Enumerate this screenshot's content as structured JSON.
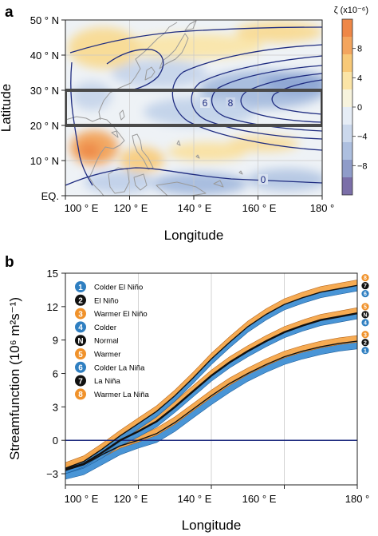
{
  "chart_data": [
    {
      "panel_label": "a",
      "type": "heatmap",
      "xlabel": "Longitude",
      "ylabel": "Latitude",
      "xlim": [
        100,
        180
      ],
      "ylim": [
        0,
        50
      ],
      "xticks": [
        100,
        120,
        140,
        160,
        180
      ],
      "xtick_labels": [
        "100 ° E",
        "120 ° E",
        "140 ° E",
        "160 ° E",
        "180 °"
      ],
      "yticks": [
        0,
        10,
        20,
        30,
        40,
        50
      ],
      "ytick_labels": [
        "EQ.",
        "10 ° N",
        "20 ° N",
        "30 ° N",
        "40 ° N",
        "50 ° N"
      ],
      "colorbar": {
        "label": "ζ (x10⁻⁶)",
        "ticks": [
          -8,
          -4,
          0,
          4,
          8
        ],
        "tick_labels": [
          "−8",
          "−4",
          "0",
          "4",
          "8"
        ],
        "range": [
          -12,
          12
        ],
        "colors": [
          "#7b6fa8",
          "#8f9cc9",
          "#adbfdf",
          "#cbd8ec",
          "#e6edf6",
          "#f7f3dd",
          "#fbe4a6",
          "#f8c978",
          "#f3a55e",
          "#ee8747"
        ]
      },
      "box": {
        "lon": [
          100,
          180
        ],
        "lat": [
          20,
          30
        ]
      },
      "contour_labels": [
        "6",
        "8",
        "0"
      ],
      "colors": {
        "contour": "#1f2c80",
        "coast": "#9a9a9a",
        "box": "#4a4a4a"
      }
    },
    {
      "panel_label": "b",
      "type": "line",
      "xlabel": "Longitude",
      "ylabel": "Streamfunction (10⁶ m²s⁻¹)",
      "xlim": [
        100,
        180
      ],
      "ylim": [
        -4,
        15
      ],
      "xticks": [
        100,
        120,
        140,
        160,
        180
      ],
      "xtick_labels": [
        "100 ° E",
        "120 ° E",
        "140 ° E",
        "160 ° E",
        "180 °"
      ],
      "yticks": [
        -3,
        0,
        3,
        6,
        9,
        12,
        15
      ],
      "ytick_labels": [
        "−3",
        "0",
        "3",
        "6",
        "9",
        "12",
        "15"
      ],
      "zero_line": 0,
      "x": [
        100,
        105,
        110,
        115,
        120,
        125,
        130,
        135,
        140,
        145,
        150,
        155,
        160,
        165,
        170,
        175,
        180
      ],
      "series": [
        {
          "name": "Normal",
          "values": [
            -2.6,
            -2.1,
            -1.1,
            0.0,
            0.8,
            1.7,
            3.0,
            4.4,
            5.8,
            7.0,
            8.0,
            8.9,
            9.7,
            10.3,
            10.8,
            11.1,
            11.4
          ]
        },
        {
          "name": "El Niño",
          "values": [
            -2.7,
            -2.2,
            -1.3,
            -0.5,
            0.0,
            0.6,
            1.6,
            2.8,
            4.0,
            5.1,
            6.0,
            6.8,
            7.5,
            8.0,
            8.4,
            8.7,
            8.9
          ]
        },
        {
          "name": "La Niña",
          "values": [
            -2.5,
            -1.9,
            -0.8,
            0.4,
            1.5,
            2.6,
            4.0,
            5.6,
            7.3,
            8.8,
            10.2,
            11.3,
            12.2,
            12.8,
            13.3,
            13.6,
            13.9
          ]
        }
      ],
      "bands": [
        {
          "name": "El Niño",
          "lower": [
            -3.5,
            -3.1,
            -2.2,
            -1.3,
            -0.7,
            -0.2,
            0.8,
            2.0,
            3.2,
            4.3,
            5.3,
            6.1,
            6.8,
            7.3,
            7.7,
            8.0,
            8.2
          ],
          "upper": [
            -2.3,
            -1.8,
            -0.9,
            -0.1,
            0.4,
            1.1,
            2.1,
            3.3,
            4.5,
            5.6,
            6.5,
            7.3,
            8.0,
            8.5,
            8.9,
            9.2,
            9.4
          ]
        },
        {
          "name": "Normal",
          "lower": [
            -3.0,
            -2.5,
            -1.6,
            -0.5,
            0.3,
            1.2,
            2.5,
            3.9,
            5.3,
            6.5,
            7.5,
            8.4,
            9.2,
            9.8,
            10.3,
            10.6,
            10.9
          ],
          "upper": [
            -2.2,
            -1.6,
            -0.6,
            0.5,
            1.3,
            2.2,
            3.5,
            4.9,
            6.3,
            7.5,
            8.5,
            9.4,
            10.2,
            10.8,
            11.3,
            11.6,
            11.9
          ]
        },
        {
          "name": "La Niña",
          "lower": [
            -3.0,
            -2.4,
            -1.3,
            -0.1,
            1.0,
            2.1,
            3.5,
            5.1,
            6.8,
            8.3,
            9.7,
            10.8,
            11.7,
            12.3,
            12.8,
            13.1,
            13.4
          ],
          "upper": [
            -2.0,
            -1.4,
            -0.3,
            0.9,
            2.0,
            3.1,
            4.5,
            6.1,
            7.8,
            9.3,
            10.7,
            11.8,
            12.7,
            13.3,
            13.8,
            14.1,
            14.4
          ]
        }
      ],
      "legend": [
        {
          "symbol": "1",
          "label": "Colder El Niño",
          "color": "#2f7fc1"
        },
        {
          "symbol": "2",
          "label": "El Niño",
          "color": "#111111"
        },
        {
          "symbol": "3",
          "label": "Warmer El Niño",
          "color": "#f0922b"
        },
        {
          "symbol": "4",
          "label": "Colder",
          "color": "#2f7fc1"
        },
        {
          "symbol": "N",
          "label": "Normal",
          "color": "#111111"
        },
        {
          "symbol": "5",
          "label": "Warmer",
          "color": "#f0922b"
        },
        {
          "symbol": "6",
          "label": "Colder La Niña",
          "color": "#2f7fc1"
        },
        {
          "symbol": "7",
          "label": "La Niña",
          "color": "#111111"
        },
        {
          "symbol": "8",
          "label": "Warmer La Niña",
          "color": "#f0922b"
        }
      ],
      "end_markers": [
        {
          "symbol": "8",
          "value": 14.6,
          "color": "#f0922b"
        },
        {
          "symbol": "7",
          "value": 13.9,
          "color": "#111111"
        },
        {
          "symbol": "6",
          "value": 13.2,
          "color": "#2f7fc1"
        },
        {
          "symbol": "5",
          "value": 12.0,
          "color": "#f0922b"
        },
        {
          "symbol": "N",
          "value": 11.4,
          "color": "#111111"
        },
        {
          "symbol": "4",
          "value": 10.8,
          "color": "#2f7fc1"
        },
        {
          "symbol": "3",
          "value": 9.5,
          "color": "#f0922b"
        },
        {
          "symbol": "2",
          "value": 8.9,
          "color": "#111111"
        },
        {
          "symbol": "1",
          "value": 8.2,
          "color": "#2f7fc1"
        }
      ],
      "colors": {
        "warm_band": "#f5a74a",
        "cold_band": "#3f8fd4",
        "zero_line": "#1f2c80",
        "grid": "#c8c8c8"
      }
    }
  ]
}
